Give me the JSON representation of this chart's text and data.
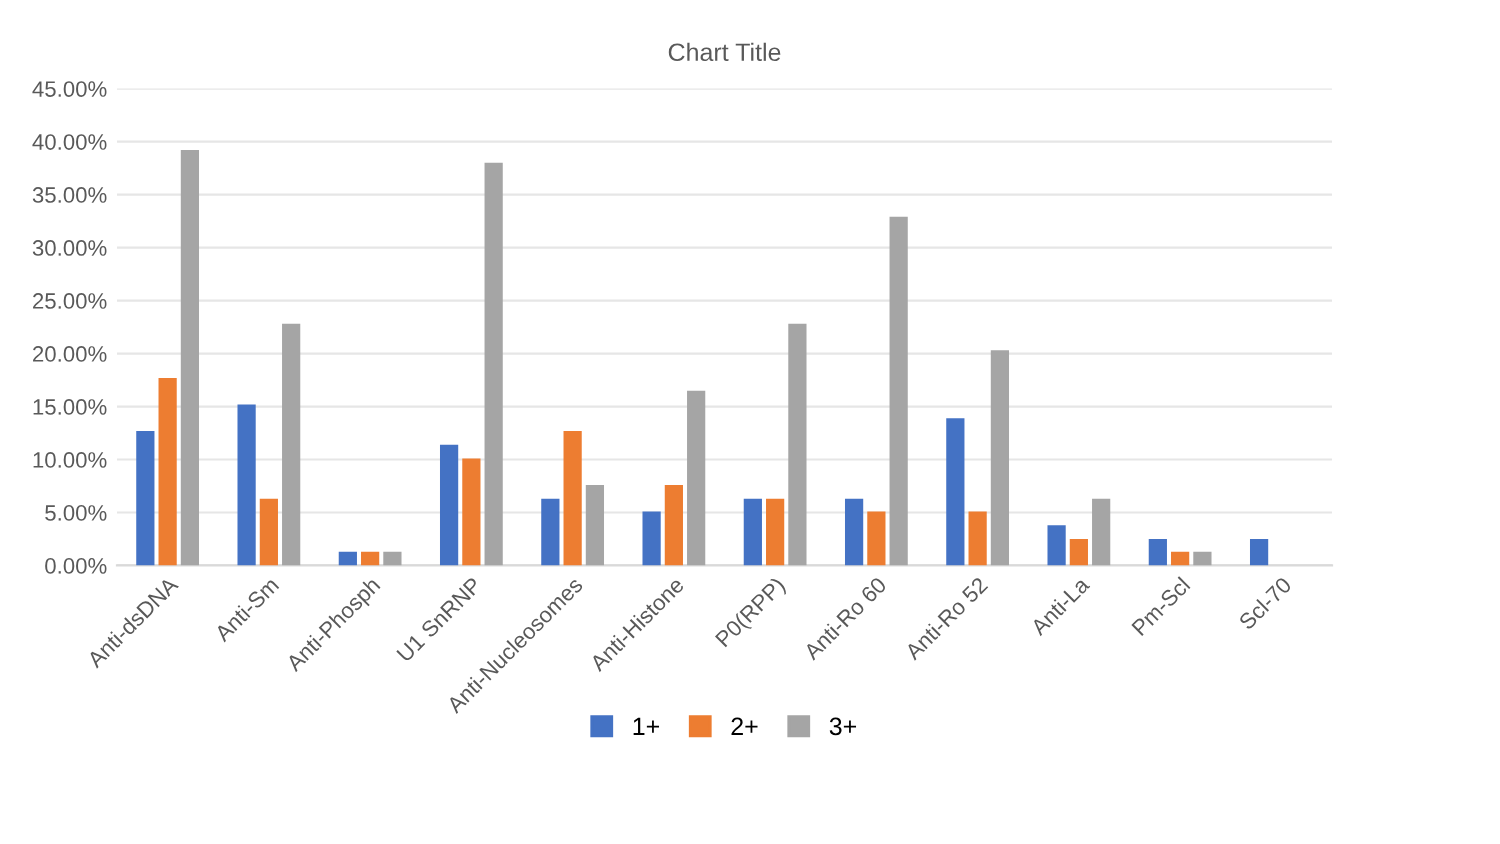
{
  "chart_data": {
    "type": "bar",
    "title": "Chart Title",
    "categories": [
      "Anti-dsDNA",
      "Anti-Sm",
      "Anti-Phosph",
      "U1 SnRNP",
      "Anti-Nucleosomes",
      "Anti-Histone",
      "P0(RPP)",
      "Anti-Ro 60",
      "Anti-Ro 52",
      "Anti-La",
      "Pm-Scl",
      "Scl-70"
    ],
    "series": [
      {
        "name": "1+",
        "color": "#4472c4",
        "values": [
          12.7,
          15.2,
          1.3,
          11.4,
          6.3,
          5.1,
          6.3,
          6.3,
          13.9,
          3.8,
          2.5,
          2.5
        ]
      },
      {
        "name": "2+",
        "color": "#ed7d31",
        "values": [
          17.7,
          6.3,
          1.3,
          10.1,
          12.7,
          7.6,
          6.3,
          5.1,
          5.1,
          2.5,
          1.3,
          0
        ]
      },
      {
        "name": "3+",
        "color": "#a5a5a5",
        "values": [
          39.2,
          22.8,
          1.3,
          38.0,
          7.6,
          16.5,
          22.8,
          32.9,
          20.3,
          6.3,
          1.3,
          0
        ]
      }
    ],
    "ylim": [
      0,
      45
    ],
    "yticks": [
      {
        "value": 0,
        "label": "0.00%"
      },
      {
        "value": 5,
        "label": "5.00%"
      },
      {
        "value": 10,
        "label": "10.00%"
      },
      {
        "value": 15,
        "label": "15.00%"
      },
      {
        "value": 20,
        "label": "20.00%"
      },
      {
        "value": 25,
        "label": "25.00%"
      },
      {
        "value": 30,
        "label": "30.00%"
      },
      {
        "value": 35,
        "label": "35.00%"
      },
      {
        "value": 40,
        "label": "40.00%"
      },
      {
        "value": 45,
        "label": "45.00%"
      }
    ],
    "grid": "y",
    "legend": "bottom"
  }
}
